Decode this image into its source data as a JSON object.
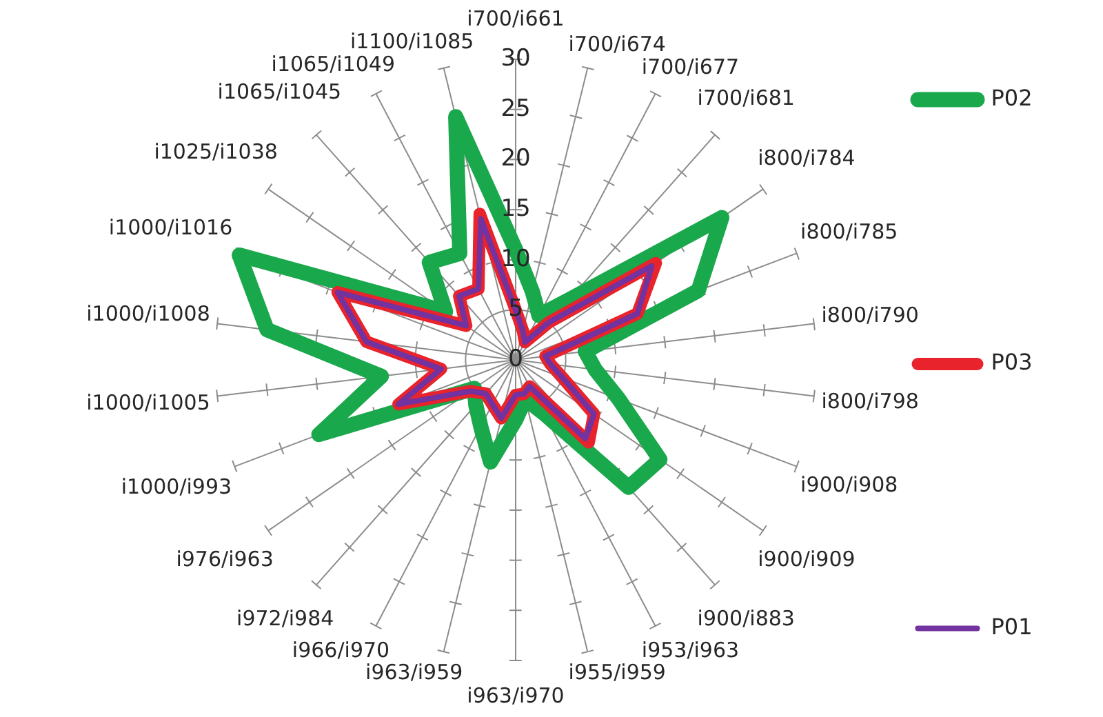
{
  "chart_data": {
    "type": "radar",
    "categories": [
      "i700/i661",
      "i700/i674",
      "i700/i677",
      "i700/i681",
      "i800/i784",
      "i800/i785",
      "i800/i790",
      "i800/i798",
      "i900/i908",
      "i900/i909",
      "i900/i883",
      "i953/i963",
      "i955/i959",
      "i963/i970",
      "i963/i959",
      "i966/i970",
      "i972/i984",
      "i976/i963",
      "i1000/i993",
      "i1000/i1005",
      "i1000/i1008",
      "i1000/i1016",
      "i1025/i1038",
      "i1065/i1045",
      "i1065/i1049",
      "i1100/i1085"
    ],
    "series": [
      {
        "name": "P02",
        "color": "#1aa84c",
        "values": [
          11,
          7,
          5,
          8,
          25,
          19.5,
          7,
          8,
          11,
          17.5,
          17,
          6,
          4,
          6,
          10.5,
          7.5,
          6,
          5,
          21,
          13.5,
          25,
          29.5,
          8.5,
          13,
          12,
          25
        ]
      },
      {
        "name": "P03",
        "color": "#e8232b",
        "values": [
          5,
          3,
          2,
          5,
          17,
          13,
          3,
          3.5,
          5,
          9.5,
          11,
          3,
          3.5,
          3.5,
          6,
          5,
          4.5,
          5.5,
          12.5,
          7.5,
          15,
          19,
          6,
          8.5,
          8,
          15
        ]
      },
      {
        "name": "P01",
        "color": "#7232a0",
        "values": [
          5,
          3,
          2,
          5,
          16.5,
          13,
          3,
          3.5,
          5,
          9.5,
          10.5,
          3,
          3.5,
          3.5,
          6,
          5,
          4.5,
          5.5,
          12.5,
          7.5,
          15,
          19,
          6,
          8.5,
          8,
          14.5
        ]
      }
    ],
    "ylim": [
      0,
      30
    ],
    "yticks": [
      0,
      5,
      10,
      15,
      20,
      25,
      30
    ],
    "grid": true,
    "legend": "right"
  }
}
